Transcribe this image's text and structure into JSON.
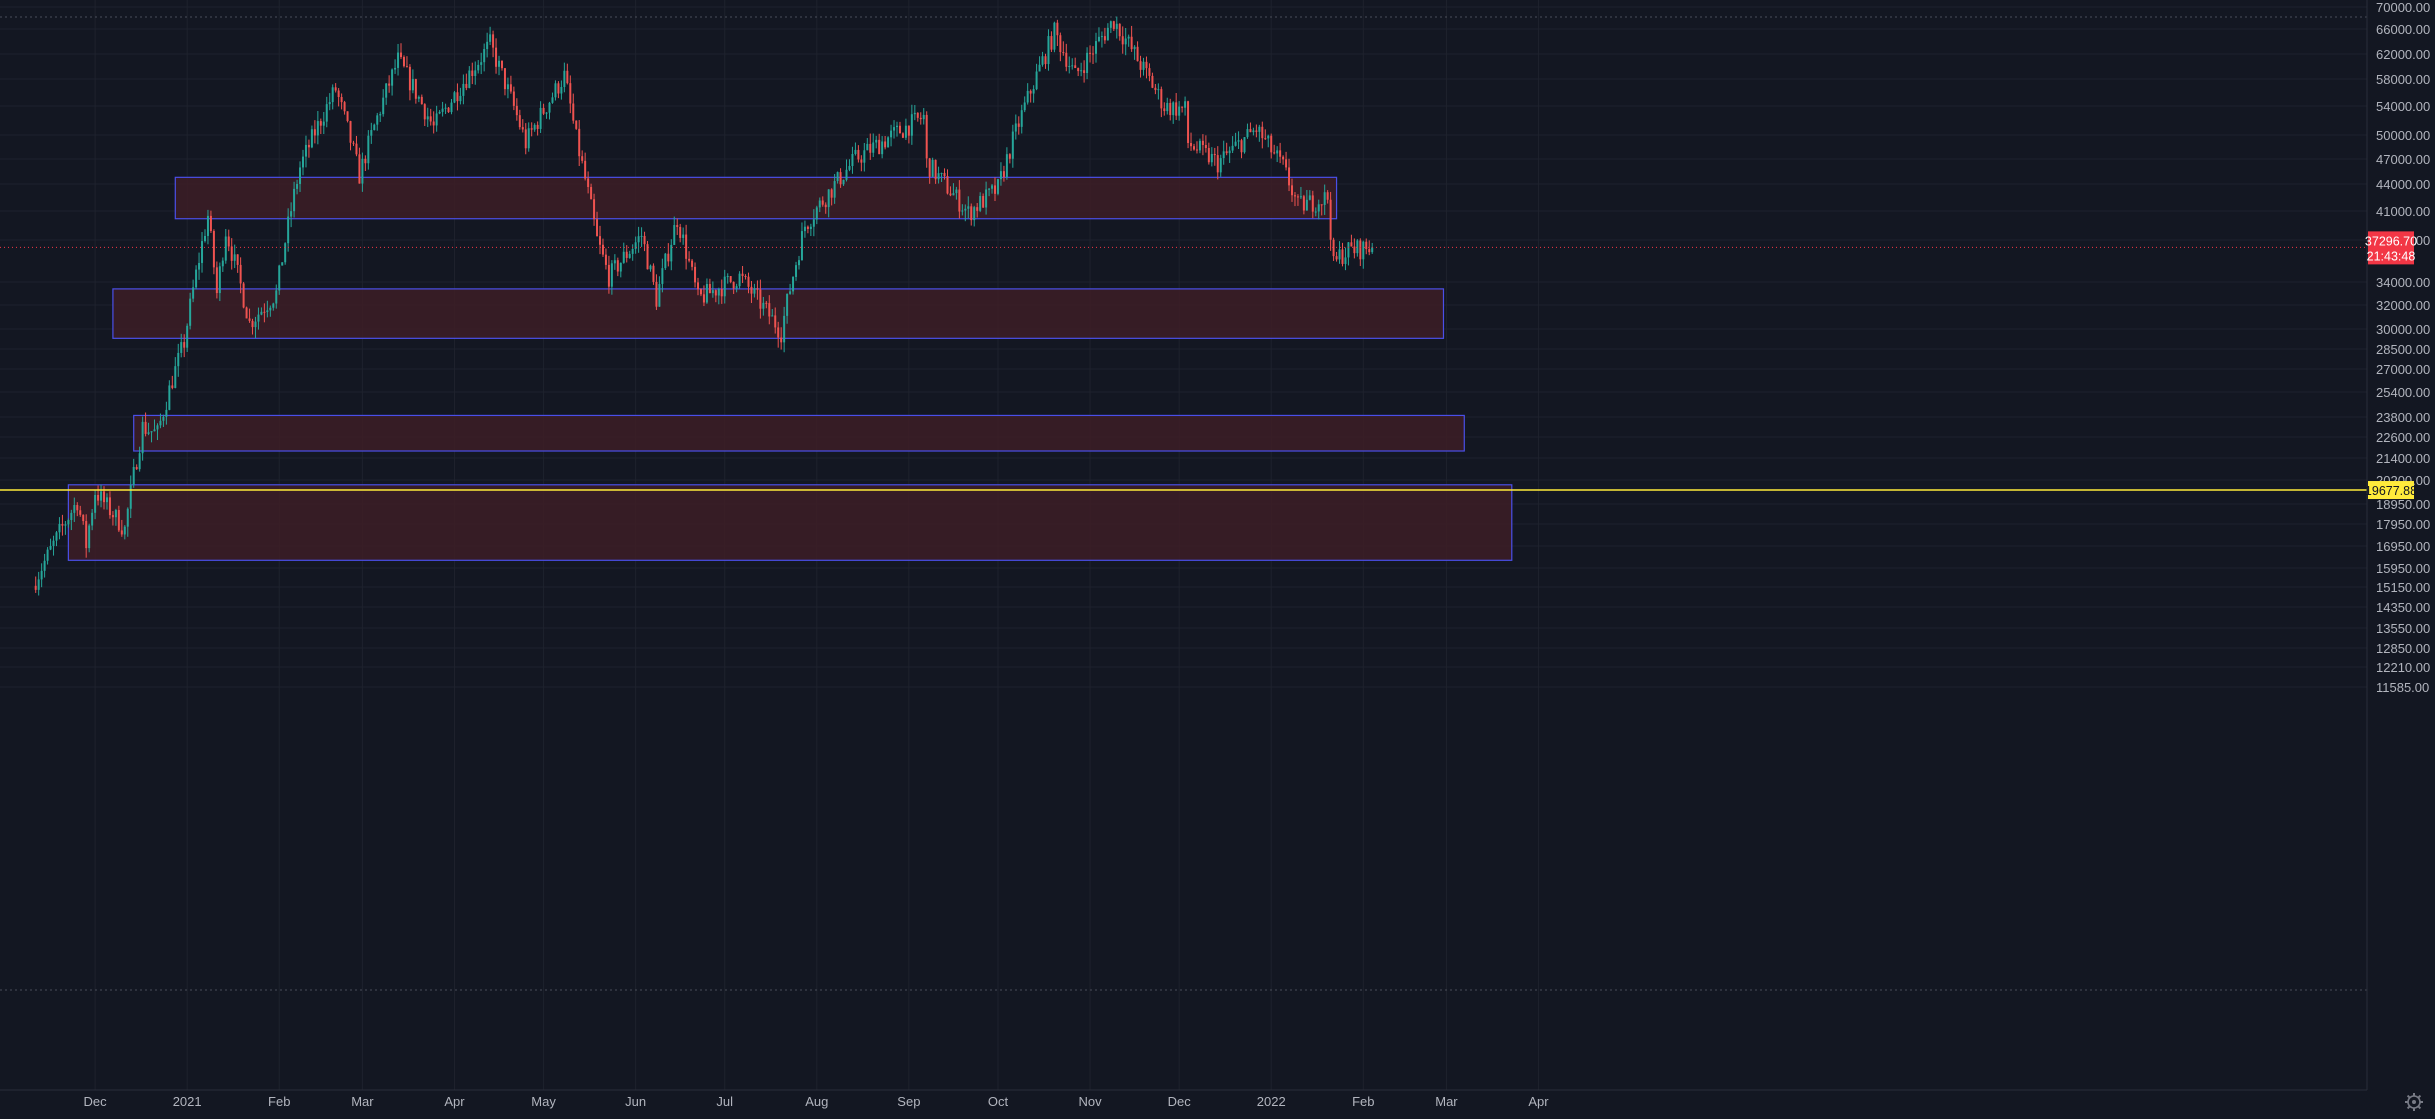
{
  "chart_data": {
    "type": "candlestick",
    "title": "",
    "xlabel": "",
    "ylabel": "",
    "ylim": [
      11000,
      70500
    ],
    "x_ticks": [
      {
        "label": "Dec",
        "date": "2020-12-01"
      },
      {
        "label": "2021",
        "date": "2021-01-01"
      },
      {
        "label": "Feb",
        "date": "2021-02-01"
      },
      {
        "label": "Mar",
        "date": "2021-03-01"
      },
      {
        "label": "Apr",
        "date": "2021-04-01"
      },
      {
        "label": "May",
        "date": "2021-05-01"
      },
      {
        "label": "Jun",
        "date": "2021-06-01"
      },
      {
        "label": "Jul",
        "date": "2021-07-01"
      },
      {
        "label": "Aug",
        "date": "2021-08-01"
      },
      {
        "label": "Sep",
        "date": "2021-09-01"
      },
      {
        "label": "Oct",
        "date": "2021-10-01"
      },
      {
        "label": "Nov",
        "date": "2021-11-01"
      },
      {
        "label": "Dec",
        "date": "2021-12-01"
      },
      {
        "label": "2022",
        "date": "2022-01-01"
      },
      {
        "label": "Feb",
        "date": "2022-02-01"
      },
      {
        "label": "Mar",
        "date": "2022-03-01"
      },
      {
        "label": "Apr",
        "date": "2022-04-01"
      }
    ],
    "y_ticks": [
      "70000.00",
      "66000.00",
      "62000.00",
      "58000.00",
      "54000.00",
      "50000.00",
      "47000.00",
      "44000.00",
      "41000.00",
      "38000.00",
      "34000.00",
      "32000.00",
      "30000.00",
      "28500.00",
      "27000.00",
      "25400.00",
      "23800.00",
      "22600.00",
      "21400.00",
      "20200.00",
      "18950.00",
      "17950.00",
      "16950.00",
      "15950.00",
      "15150.00",
      "14350.00",
      "13550.00",
      "12850.00",
      "12210.00",
      "11585.00"
    ],
    "grid": true,
    "last_price": {
      "value": 37296.7,
      "label": "37296.70",
      "countdown": "21:43:48"
    },
    "hline": {
      "value": 19677.88,
      "label": "19677.88"
    },
    "zones": [
      {
        "x_start": "2020-12-28",
        "x_end": "2022-01-23",
        "y_low": 40200,
        "y_high": 44800
      },
      {
        "x_start": "2020-12-07",
        "x_end": "2022-02-28",
        "y_low": 29300,
        "y_high": 33400
      },
      {
        "x_start": "2020-12-14",
        "x_end": "2022-03-07",
        "y_low": 21800,
        "y_high": 23900
      },
      {
        "x_start": "2020-11-22",
        "x_end": "2022-03-23",
        "y_low": 16300,
        "y_high": 19950
      }
    ],
    "price_path": [
      [
        "2020-11-10",
        15200
      ],
      [
        "2020-11-25",
        19100
      ],
      [
        "2020-11-28",
        17000
      ],
      [
        "2020-12-01",
        19600
      ],
      [
        "2020-12-11",
        17700
      ],
      [
        "2020-12-17",
        23200
      ],
      [
        "2020-12-22",
        22800
      ],
      [
        "2020-12-31",
        29000
      ],
      [
        "2021-01-08",
        40500
      ],
      [
        "2021-01-11",
        33000
      ],
      [
        "2021-01-14",
        39000
      ],
      [
        "2021-01-22",
        30500
      ],
      [
        "2021-01-31",
        33000
      ],
      [
        "2021-02-08",
        46000
      ],
      [
        "2021-02-20",
        56500
      ],
      [
        "2021-02-28",
        45000
      ],
      [
        "2021-03-13",
        61000
      ],
      [
        "2021-03-25",
        51000
      ],
      [
        "2021-04-13",
        63500
      ],
      [
        "2021-04-25",
        49000
      ],
      [
        "2021-05-08",
        58500
      ],
      [
        "2021-05-12",
        49500
      ],
      [
        "2021-05-19",
        38000
      ],
      [
        "2021-05-23",
        34500
      ],
      [
        "2021-06-03",
        38500
      ],
      [
        "2021-06-08",
        32500
      ],
      [
        "2021-06-15",
        40200
      ],
      [
        "2021-06-22",
        32500
      ],
      [
        "2021-07-06",
        34500
      ],
      [
        "2021-07-20",
        29800
      ],
      [
        "2021-07-28",
        39500
      ],
      [
        "2021-08-14",
        47000
      ],
      [
        "2021-09-06",
        52500
      ],
      [
        "2021-09-07",
        46500
      ],
      [
        "2021-09-21",
        40800
      ],
      [
        "2021-10-01",
        43500
      ],
      [
        "2021-10-20",
        65500
      ],
      [
        "2021-10-27",
        58500
      ],
      [
        "2021-11-09",
        67500
      ],
      [
        "2021-11-26",
        54000
      ],
      [
        "2021-12-03",
        53500
      ],
      [
        "2021-12-04",
        49000
      ],
      [
        "2021-12-14",
        46500
      ],
      [
        "2021-12-27",
        50800
      ],
      [
        "2022-01-05",
        46000
      ],
      [
        "2022-01-10",
        41500
      ],
      [
        "2022-01-20",
        42500
      ],
      [
        "2022-01-22",
        35500
      ],
      [
        "2022-01-24",
        36500
      ],
      [
        "2022-01-27",
        37000
      ],
      [
        "2022-02-04",
        37296
      ]
    ]
  },
  "colors": {
    "background": "#131722",
    "grid": "#1e222d",
    "axis_text": "#b2b5be",
    "up": "#26a69a",
    "down": "#ef5350",
    "zone_fill": "#3d1d26",
    "zone_border": "#4a4fe8",
    "hline": "#ffeb3b",
    "price_label_bg": "#f23645"
  }
}
